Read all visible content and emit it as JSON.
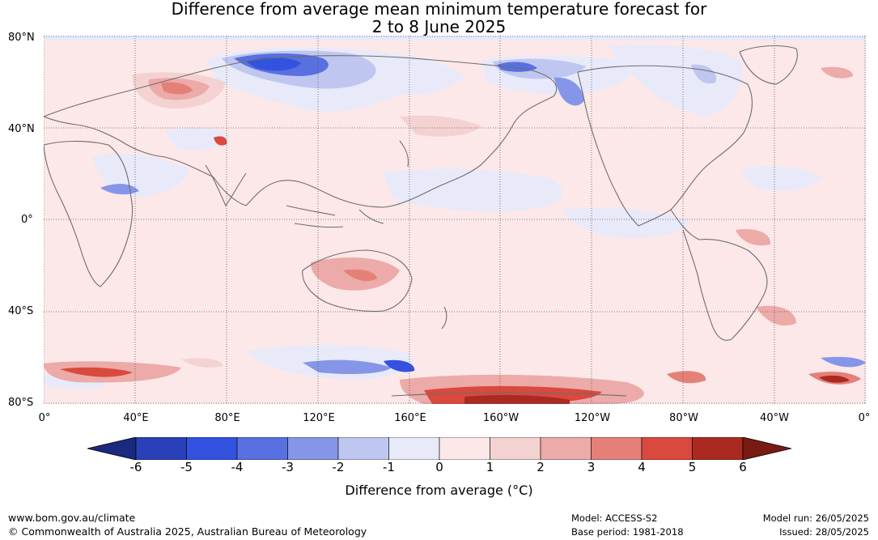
{
  "title": {
    "line1": "Difference from average mean minimum temperature forecast for",
    "line2": "2 to 8 June 2025"
  },
  "map": {
    "lat_labels": [
      "80°N",
      "40°N",
      "0°",
      "40°S",
      "80°S"
    ],
    "lon_labels": [
      "0°",
      "40°E",
      "80°E",
      "120°E",
      "160°E",
      "160°W",
      "120°W",
      "80°W",
      "40°W",
      "0°"
    ]
  },
  "colorbar": {
    "ticks": [
      "-6",
      "-5",
      "-4",
      "-3",
      "-2",
      "-1",
      "0",
      "1",
      "2",
      "3",
      "4",
      "5",
      "6"
    ],
    "colors": [
      "#1a2a80",
      "#2a40b8",
      "#3352e0",
      "#5870e0",
      "#8596e8",
      "#bfc6f0",
      "#e8eafa",
      "#fce8e8",
      "#f4d2d2",
      "#ecaaa8",
      "#e58078",
      "#d9493e",
      "#aa2a22",
      "#7a1a14"
    ],
    "label": "Difference from average (°C)"
  },
  "footer": {
    "website": "www.bom.gov.au/climate",
    "copyright": "© Commonwealth of Australia 2025, Australian Bureau of Meteorology",
    "model": "Model: ACCESS-S2",
    "base_period": "Base period: 1981-2018",
    "model_run": "Model run: 26/05/2025",
    "issued": "Issued: 28/05/2025"
  }
}
